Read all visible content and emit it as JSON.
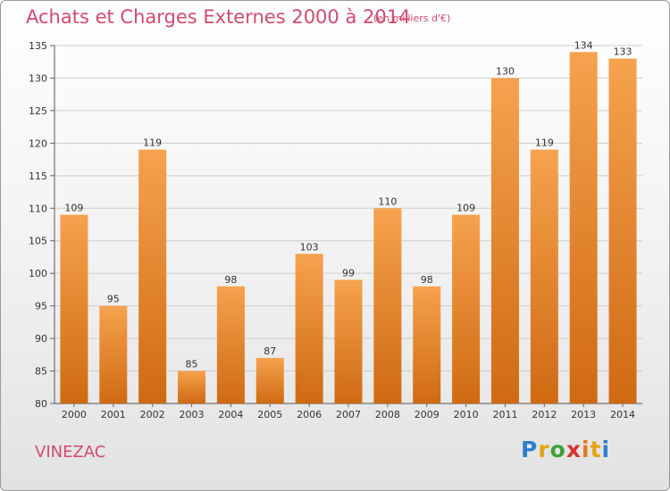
{
  "header": {
    "title": "Achats et Charges Externes 2000 à 2014",
    "subtitle": "(en milliers d'€)"
  },
  "footer": {
    "commune": "VINEZAC",
    "logo_letters": [
      "P",
      "r",
      "o",
      "x",
      "i",
      "t",
      "i"
    ]
  },
  "colors": {
    "title": "#d14a6c",
    "bar_top": "#f6a24e",
    "bar_bottom": "#cf6a12",
    "grid": "#cccccc"
  },
  "chart_data": {
    "type": "bar",
    "categories": [
      "2000",
      "2001",
      "2002",
      "2003",
      "2004",
      "2005",
      "2006",
      "2007",
      "2008",
      "2009",
      "2010",
      "2011",
      "2012",
      "2013",
      "2014"
    ],
    "values": [
      109,
      95,
      119,
      85,
      98,
      87,
      103,
      99,
      110,
      98,
      109,
      130,
      119,
      134,
      133
    ],
    "title": "Achats et Charges Externes 2000 à 2014",
    "subtitle": "(en milliers d'€)",
    "ylim": [
      80,
      135
    ],
    "yticks": [
      80,
      85,
      90,
      95,
      100,
      105,
      110,
      115,
      120,
      125,
      130,
      135
    ],
    "grid": true,
    "data_labels": true
  }
}
